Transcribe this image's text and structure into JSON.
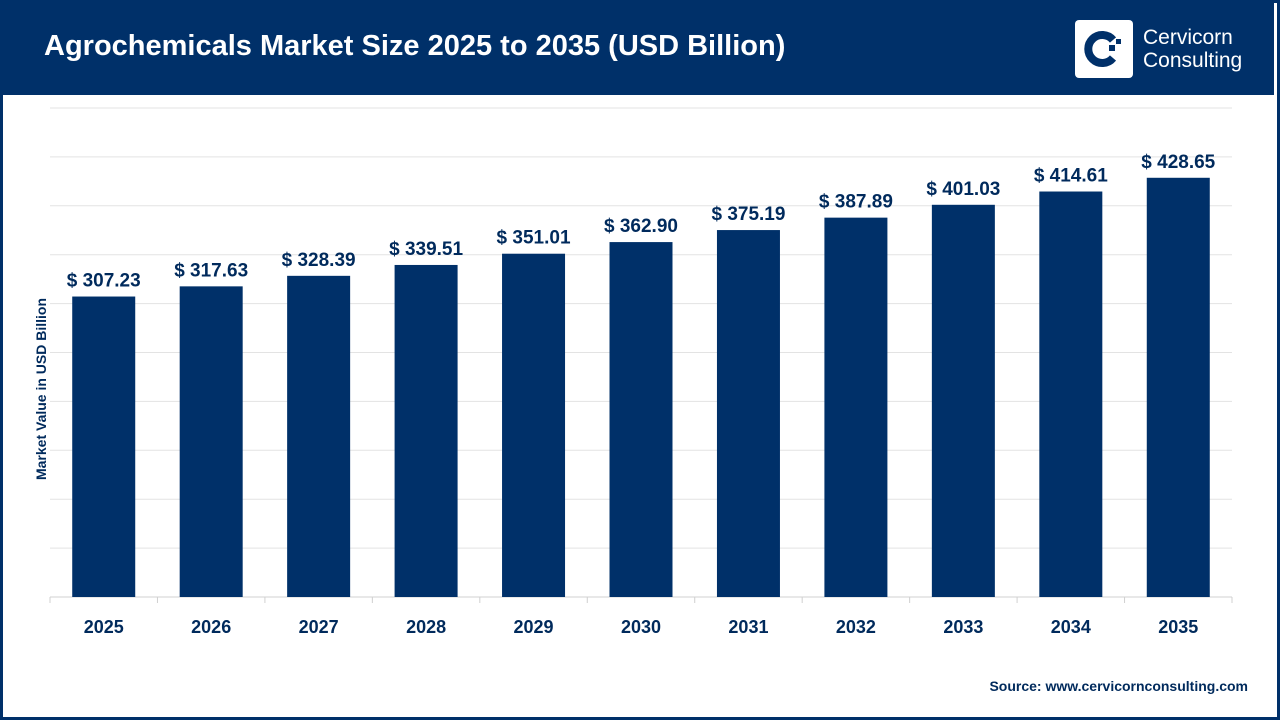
{
  "header": {
    "title": "Agrochemicals Market Size 2025 to 2035 (USD Billion)"
  },
  "logo": {
    "line1": "Cervicorn",
    "line2": "Consulting"
  },
  "source": "Source: www.cervicornconsulting.com",
  "colors": {
    "bar": "#003069",
    "header": "#003069",
    "label": "#002a5c"
  },
  "chart_data": {
    "type": "bar",
    "title": "Agrochemicals Market Size 2025 to 2035 (USD Billion)",
    "xlabel": "",
    "ylabel": "Market Value in USD Billion",
    "categories": [
      "2025",
      "2026",
      "2027",
      "2028",
      "2029",
      "2030",
      "2031",
      "2032",
      "2033",
      "2034",
      "2035"
    ],
    "values": [
      307.23,
      317.63,
      328.39,
      339.51,
      351.01,
      362.9,
      375.19,
      387.89,
      401.03,
      414.61,
      428.65
    ],
    "labels": [
      "$ 307.23",
      "$ 317.63",
      "$ 328.39",
      "$ 339.51",
      "$ 351.01",
      "$ 362.90",
      "$ 375.19",
      "$ 387.89",
      "$ 401.03",
      "$ 414.61",
      "$ 428.65"
    ],
    "ylim": [
      0,
      500
    ],
    "grid": true,
    "grid_step": 50,
    "legend": "none"
  }
}
